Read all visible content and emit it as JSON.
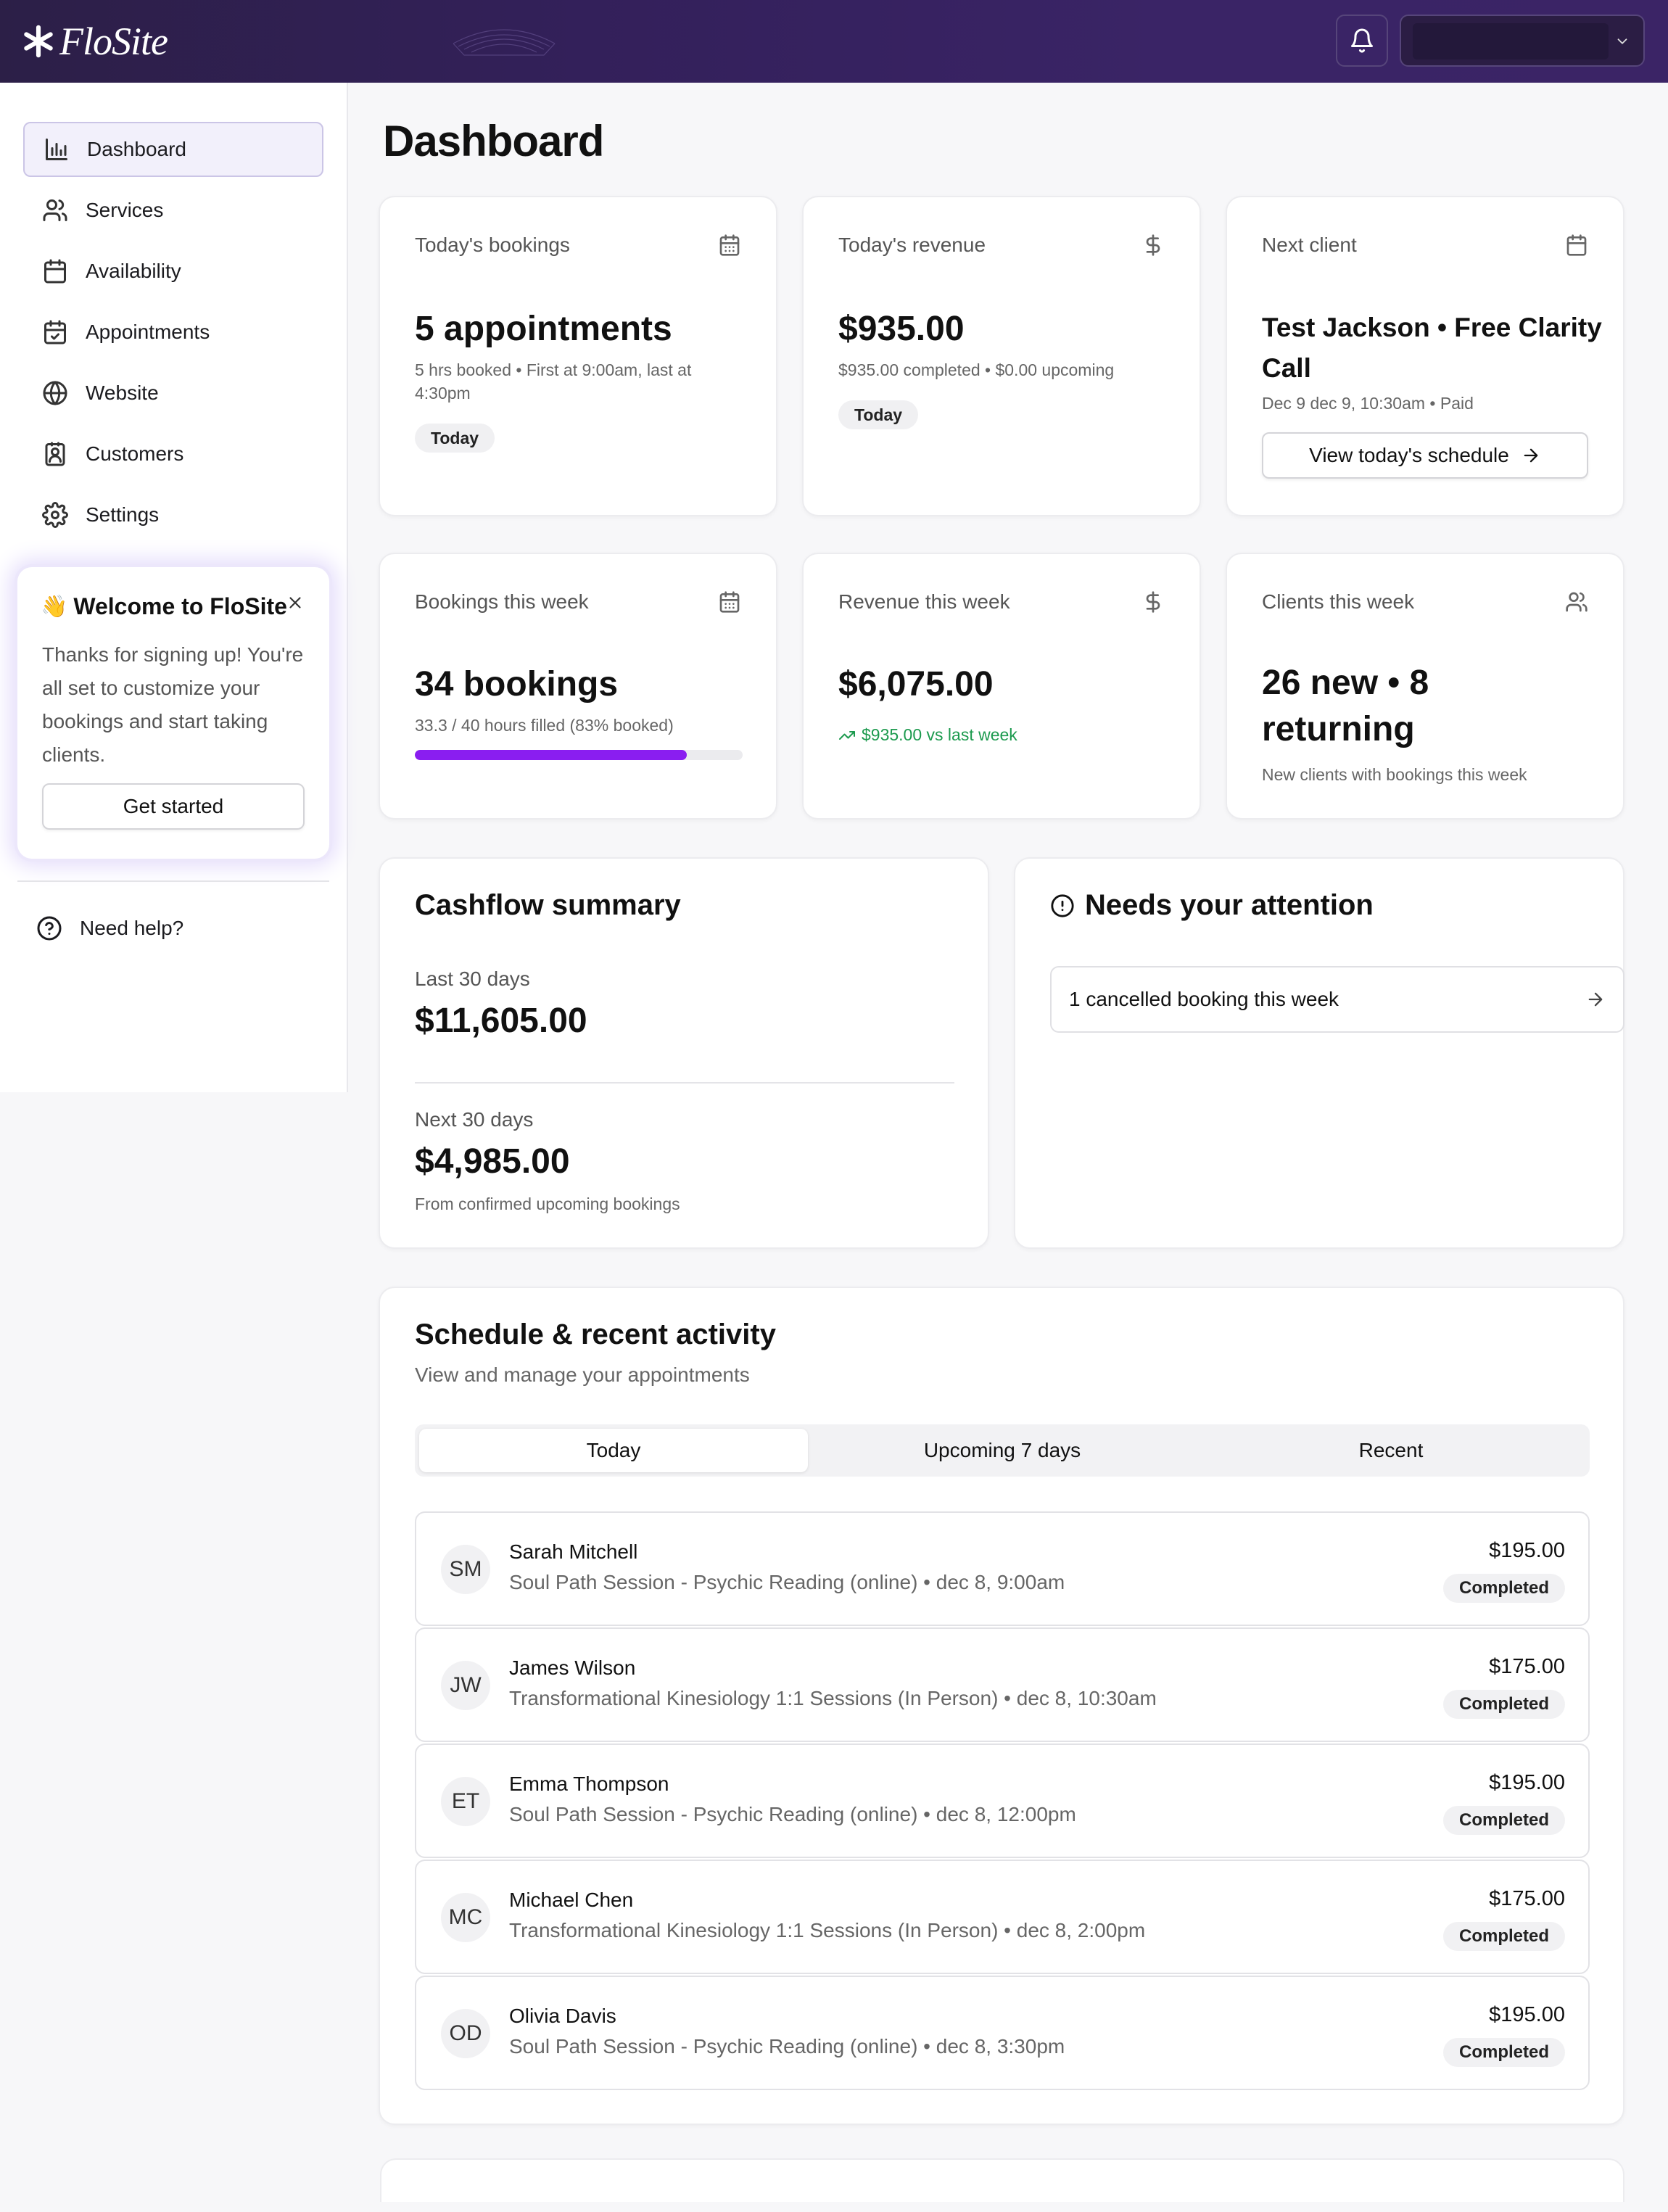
{
  "brand": {
    "name": "FloSite"
  },
  "header": {
    "bell_icon": "bell-icon",
    "account_chevron": "chevron-down-icon"
  },
  "sidebar": {
    "items": [
      {
        "label": "Dashboard",
        "icon": "bar-chart-icon",
        "active": true
      },
      {
        "label": "Services",
        "icon": "users-icon"
      },
      {
        "label": "Availability",
        "icon": "calendar-icon"
      },
      {
        "label": "Appointments",
        "icon": "calendar-check-icon"
      },
      {
        "label": "Website",
        "icon": "globe-icon"
      },
      {
        "label": "Customers",
        "icon": "contact-icon"
      },
      {
        "label": "Settings",
        "icon": "gear-icon"
      }
    ],
    "welcome": {
      "emoji": "👋",
      "title": "Welcome to FloSite",
      "body": "Thanks for signing up! You're all set to customize your bookings and start taking clients.",
      "button": "Get started"
    },
    "help": "Need help?"
  },
  "page": {
    "title": "Dashboard"
  },
  "stats": {
    "today_bookings": {
      "label": "Today's bookings",
      "value": "5 appointments",
      "sub": "5 hrs booked • First at 9:00am, last at 4:30pm",
      "badge": "Today"
    },
    "today_revenue": {
      "label": "Today's revenue",
      "value": "$935.00",
      "sub": "$935.00 completed • $0.00 upcoming",
      "badge": "Today"
    },
    "next_client": {
      "label": "Next client",
      "value": "Test Jackson • Free Clarity Call",
      "sub": "Dec 9 dec 9, 10:30am • Paid",
      "button": "View today's schedule"
    },
    "week_bookings": {
      "label": "Bookings this week",
      "value": "34 bookings",
      "sub": "33.3 / 40 hours filled (83% booked)",
      "progress": 0.83
    },
    "week_revenue": {
      "label": "Revenue this week",
      "value": "$6,075.00",
      "trend": "$935.00 vs last week"
    },
    "week_clients": {
      "label": "Clients this week",
      "value": "26 new • 8 returning",
      "sub": "New clients with bookings this week"
    }
  },
  "cashflow": {
    "title": "Cashflow summary",
    "last_label": "Last 30 days",
    "last_value": "$11,605.00",
    "next_label": "Next 30 days",
    "next_value": "$4,985.00",
    "next_sub": "From confirmed upcoming bookings"
  },
  "attention": {
    "title": "Needs your attention",
    "items": [
      {
        "label": "1 cancelled booking this week"
      }
    ]
  },
  "schedule": {
    "title": "Schedule & recent activity",
    "subtitle": "View and manage your appointments",
    "tabs": [
      {
        "label": "Today",
        "active": true
      },
      {
        "label": "Upcoming 7 days"
      },
      {
        "label": "Recent"
      }
    ],
    "appointments": [
      {
        "initials": "SM",
        "name": "Sarah Mitchell",
        "detail": "Soul Path Session - Psychic Reading (online) • dec 8, 9:00am",
        "price": "$195.00",
        "status": "Completed"
      },
      {
        "initials": "JW",
        "name": "James Wilson",
        "detail": "Transformational Kinesiology 1:1 Sessions (In Person) • dec 8, 10:30am",
        "price": "$175.00",
        "status": "Completed"
      },
      {
        "initials": "ET",
        "name": "Emma Thompson",
        "detail": "Soul Path Session - Psychic Reading (online) • dec 8, 12:00pm",
        "price": "$195.00",
        "status": "Completed"
      },
      {
        "initials": "MC",
        "name": "Michael Chen",
        "detail": "Transformational Kinesiology 1:1 Sessions (In Person) • dec 8, 2:00pm",
        "price": "$175.00",
        "status": "Completed"
      },
      {
        "initials": "OD",
        "name": "Olivia Davis",
        "detail": "Soul Path Session - Psychic Reading (online) • dec 8, 3:30pm",
        "price": "$195.00",
        "status": "Completed"
      }
    ]
  },
  "colors": {
    "accent": "#8a1ef0",
    "trend_positive": "#1c9a4e",
    "header_bg": "#33205a"
  }
}
